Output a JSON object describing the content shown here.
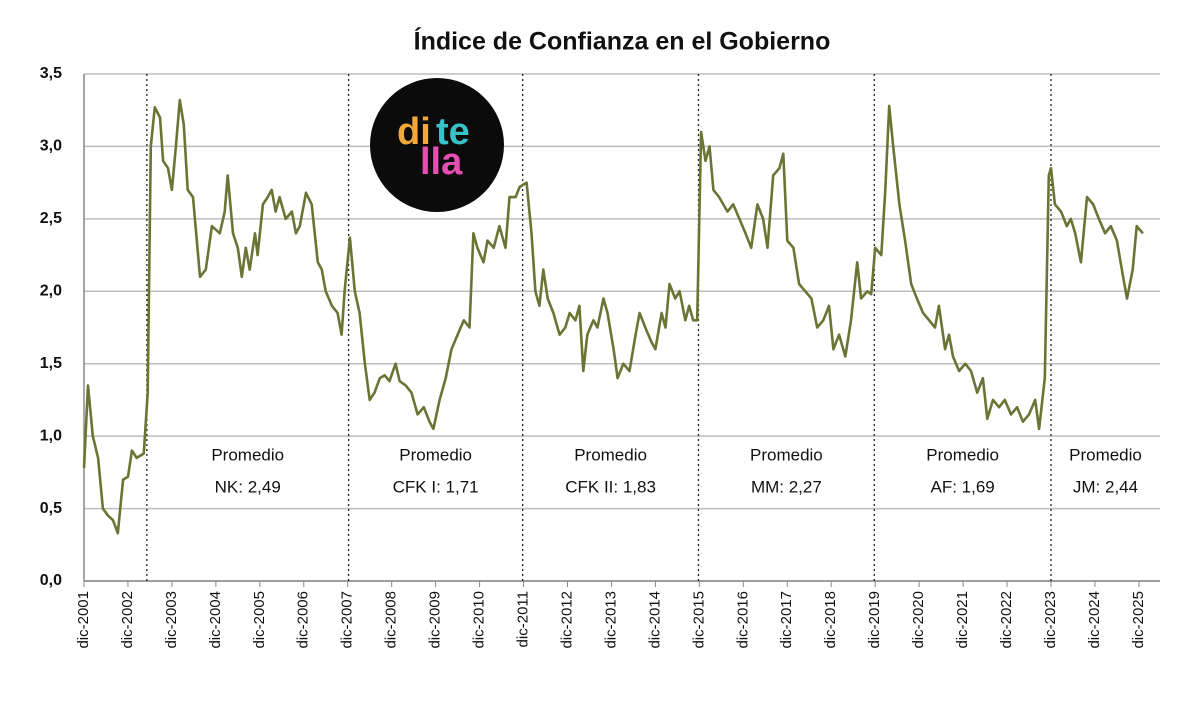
{
  "chart_data": {
    "type": "line",
    "title": "Índice de Confianza en el Gobierno",
    "logo": [
      "di",
      "te",
      "lla"
    ],
    "xlim": [
      2001.92,
      2026.4
    ],
    "ylim": [
      0,
      3.5
    ],
    "yticks": [
      {
        "value": 0,
        "label": "0,0"
      },
      {
        "value": 0.5,
        "label": "0,5"
      },
      {
        "value": 1,
        "label": "1,0"
      },
      {
        "value": 1.5,
        "label": "1,5"
      },
      {
        "value": 2,
        "label": "2,0"
      },
      {
        "value": 2.5,
        "label": "2,5"
      },
      {
        "value": 3,
        "label": "3,0"
      },
      {
        "value": 3.5,
        "label": "3,5"
      }
    ],
    "xticks": [
      {
        "value": 2001.92,
        "label": "dic-2001"
      },
      {
        "value": 2002.92,
        "label": "dic-2002"
      },
      {
        "value": 2003.92,
        "label": "dic-2003"
      },
      {
        "value": 2004.92,
        "label": "dic-2004"
      },
      {
        "value": 2005.92,
        "label": "dic-2005"
      },
      {
        "value": 2006.92,
        "label": "dic-2006"
      },
      {
        "value": 2007.92,
        "label": "dic-2007"
      },
      {
        "value": 2008.92,
        "label": "dic-2008"
      },
      {
        "value": 2009.92,
        "label": "dic-2009"
      },
      {
        "value": 2010.92,
        "label": "dic-2010"
      },
      {
        "value": 2011.92,
        "label": "dic-2011"
      },
      {
        "value": 2012.92,
        "label": "dic-2012"
      },
      {
        "value": 2013.92,
        "label": "dic-2013"
      },
      {
        "value": 2014.92,
        "label": "dic-2014"
      },
      {
        "value": 2015.92,
        "label": "dic-2015"
      },
      {
        "value": 2016.92,
        "label": "dic-2016"
      },
      {
        "value": 2017.92,
        "label": "dic-2017"
      },
      {
        "value": 2018.92,
        "label": "dic-2018"
      },
      {
        "value": 2019.92,
        "label": "dic-2019"
      },
      {
        "value": 2020.92,
        "label": "dic-2020"
      },
      {
        "value": 2021.92,
        "label": "dic-2021"
      },
      {
        "value": 2022.92,
        "label": "dic-2022"
      },
      {
        "value": 2023.92,
        "label": "dic-2023"
      },
      {
        "value": 2024.92,
        "label": "dic-2024"
      },
      {
        "value": 2025.92,
        "label": "dic-2025"
      }
    ],
    "grid": true,
    "period_lines": [
      2003.35,
      2007.94,
      2011.9,
      2015.9,
      2019.9,
      2023.92
    ],
    "annotations": [
      {
        "title": "Promedio",
        "text": "NK: 2,49"
      },
      {
        "title": "Promedio",
        "text": "CFK I: 1,71"
      },
      {
        "title": "Promedio",
        "text": "CFK II: 1,83"
      },
      {
        "title": "Promedio",
        "text": "MM: 2,27"
      },
      {
        "title": "Promedio",
        "text": "AF: 1,69"
      },
      {
        "title": "Promedio",
        "text": "JM: 2,44"
      }
    ],
    "x": [
      2001.92,
      2002.01,
      2002.12,
      2002.24,
      2002.35,
      2002.47,
      2002.58,
      2002.69,
      2002.81,
      2002.92,
      2003.01,
      2003.12,
      2003.28,
      2003.37,
      2003.44,
      2003.53,
      2003.65,
      2003.72,
      2003.83,
      2003.92,
      2004.01,
      2004.1,
      2004.19,
      2004.28,
      2004.4,
      2004.56,
      2004.69,
      2004.83,
      2005.01,
      2005.12,
      2005.19,
      2005.31,
      2005.42,
      2005.51,
      2005.6,
      2005.69,
      2005.81,
      2005.87,
      2005.99,
      2006.1,
      2006.19,
      2006.28,
      2006.37,
      2006.51,
      2006.65,
      2006.74,
      2006.83,
      2006.97,
      2007.1,
      2007.24,
      2007.33,
      2007.42,
      2007.56,
      2007.69,
      2007.78,
      2007.85,
      2007.97,
      2008.08,
      2008.19,
      2008.31,
      2008.42,
      2008.53,
      2008.65,
      2008.76,
      2008.87,
      2009.01,
      2009.1,
      2009.24,
      2009.37,
      2009.51,
      2009.65,
      2009.78,
      2009.87,
      2010.01,
      2010.15,
      2010.28,
      2010.42,
      2010.56,
      2010.69,
      2010.78,
      2010.87,
      2011.01,
      2011.1,
      2011.24,
      2011.37,
      2011.51,
      2011.6,
      2011.74,
      2011.83,
      2011.99,
      2012.1,
      2012.19,
      2012.28,
      2012.37,
      2012.47,
      2012.6,
      2012.74,
      2012.87,
      2012.97,
      2013.1,
      2013.19,
      2013.28,
      2013.37,
      2013.51,
      2013.6,
      2013.74,
      2013.83,
      2013.97,
      2014.06,
      2014.19,
      2014.33,
      2014.47,
      2014.56,
      2014.69,
      2014.83,
      2014.92,
      2015.06,
      2015.15,
      2015.24,
      2015.37,
      2015.47,
      2015.6,
      2015.69,
      2015.78,
      2015.87,
      2015.96,
      2016.06,
      2016.15,
      2016.24,
      2016.37,
      2016.56,
      2016.69,
      2016.83,
      2016.97,
      2017.1,
      2017.24,
      2017.37,
      2017.47,
      2017.6,
      2017.74,
      2017.83,
      2017.92,
      2018.06,
      2018.19,
      2018.33,
      2018.47,
      2018.6,
      2018.74,
      2018.87,
      2018.97,
      2019.1,
      2019.24,
      2019.37,
      2019.51,
      2019.6,
      2019.74,
      2019.83,
      2019.92,
      2020.06,
      2020.15,
      2020.24,
      2020.33,
      2020.47,
      2020.6,
      2020.74,
      2020.87,
      2021.01,
      2021.15,
      2021.28,
      2021.37,
      2021.51,
      2021.6,
      2021.69,
      2021.83,
      2021.97,
      2022.1,
      2022.24,
      2022.37,
      2022.47,
      2022.6,
      2022.74,
      2022.87,
      2023.01,
      2023.15,
      2023.28,
      2023.42,
      2023.56,
      2023.65,
      2023.78,
      2023.87,
      2023.92,
      2024.01,
      2024.15,
      2024.28,
      2024.37,
      2024.47,
      2024.6,
      2024.74,
      2024.88,
      2025.01,
      2025.15,
      2025.28,
      2025.42,
      2025.56,
      2025.65,
      2025.78,
      2025.87,
      2026.01
    ],
    "series": [
      {
        "color": "#6b7434",
        "values": [
          0.78,
          1.35,
          1.0,
          0.85,
          0.5,
          0.45,
          0.42,
          0.33,
          0.7,
          0.72,
          0.9,
          0.85,
          0.88,
          1.3,
          3.0,
          3.27,
          3.2,
          2.9,
          2.85,
          2.7,
          3.0,
          3.32,
          3.15,
          2.7,
          2.65,
          2.1,
          2.15,
          2.45,
          2.4,
          2.55,
          2.8,
          2.4,
          2.3,
          2.1,
          2.3,
          2.15,
          2.4,
          2.25,
          2.6,
          2.65,
          2.7,
          2.55,
          2.65,
          2.5,
          2.55,
          2.4,
          2.45,
          2.68,
          2.6,
          2.2,
          2.15,
          2.0,
          1.9,
          1.85,
          1.7,
          2.0,
          2.37,
          2.0,
          1.85,
          1.5,
          1.25,
          1.3,
          1.4,
          1.42,
          1.38,
          1.5,
          1.38,
          1.35,
          1.3,
          1.15,
          1.2,
          1.1,
          1.05,
          1.25,
          1.4,
          1.6,
          1.7,
          1.8,
          1.75,
          2.4,
          2.3,
          2.2,
          2.35,
          2.3,
          2.45,
          2.3,
          2.65,
          2.65,
          2.72,
          2.75,
          2.4,
          2.0,
          1.9,
          2.15,
          1.95,
          1.85,
          1.7,
          1.75,
          1.85,
          1.8,
          1.9,
          1.45,
          1.7,
          1.8,
          1.75,
          1.95,
          1.85,
          1.6,
          1.4,
          1.5,
          1.45,
          1.7,
          1.85,
          1.75,
          1.65,
          1.6,
          1.85,
          1.75,
          2.05,
          1.95,
          2.0,
          1.8,
          1.9,
          1.8,
          1.8,
          3.1,
          2.9,
          3.0,
          2.7,
          2.65,
          2.55,
          2.6,
          2.5,
          2.4,
          2.3,
          2.6,
          2.5,
          2.3,
          2.8,
          2.85,
          2.95,
          2.35,
          2.3,
          2.05,
          2.0,
          1.95,
          1.75,
          1.8,
          1.9,
          1.6,
          1.7,
          1.55,
          1.8,
          2.2,
          1.95,
          2.0,
          1.98,
          2.3,
          2.25,
          2.7,
          3.28,
          3.0,
          2.6,
          2.35,
          2.05,
          1.95,
          1.85,
          1.8,
          1.75,
          1.9,
          1.6,
          1.7,
          1.55,
          1.45,
          1.5,
          1.45,
          1.3,
          1.4,
          1.12,
          1.25,
          1.2,
          1.25,
          1.15,
          1.2,
          1.1,
          1.15,
          1.25,
          1.05,
          1.4,
          2.8,
          2.85,
          2.6,
          2.55,
          2.45,
          2.5,
          2.4,
          2.2,
          2.65,
          2.6,
          2.5,
          2.4,
          2.45,
          2.35,
          2.1,
          1.95,
          2.15,
          2.45,
          2.4
        ]
      }
    ]
  }
}
